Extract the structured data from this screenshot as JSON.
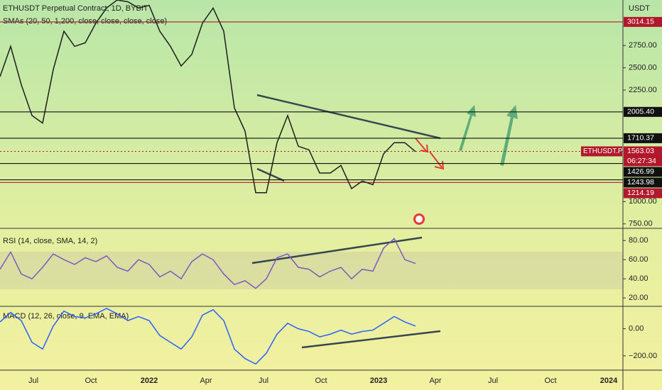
{
  "header": {
    "symbol": "ETHUSDT Perpetual Contract, 1D, BYBIT",
    "indicator": "SMAs (20, 50, 1,200, close, close, close, close)"
  },
  "price_axis": {
    "unit": "USDT",
    "ylim": [
      3260,
      700
    ],
    "yticks": [
      {
        "value": 2750,
        "label": "2750.00"
      },
      {
        "value": 2500,
        "label": "2500.00"
      },
      {
        "value": 2250,
        "label": "2250.00"
      },
      {
        "value": 1000,
        "label": "1000.00"
      },
      {
        "value": 750,
        "label": "750.00"
      }
    ],
    "levels": [
      {
        "value": 3014.15,
        "label": "3014.15",
        "color": "#b2182b"
      },
      {
        "value": 2005.4,
        "label": "2005.40",
        "color": "#111111"
      },
      {
        "value": 1710.37,
        "label": "1710.37",
        "color": "#111111"
      },
      {
        "value": 1426.99,
        "label": "1426.99",
        "color": "#111111"
      },
      {
        "value": 1243.98,
        "label": "1243.98",
        "color": "#111111"
      },
      {
        "value": 1214.19,
        "label": "1214.19",
        "color": "#b2182b"
      }
    ],
    "last": {
      "name": "ETHUSDT.P",
      "value": 1563.03,
      "countdown": "06:27:34",
      "color": "#b2182b"
    }
  },
  "price_series": {
    "color": "#1e1e1e",
    "values": [
      2400,
      2740,
      2310,
      1965,
      1880,
      2480,
      2910,
      2740,
      2780,
      3000,
      3170,
      3260,
      3240,
      3170,
      3200,
      2910,
      2740,
      2520,
      2650,
      3000,
      3170,
      2910,
      2050,
      1790,
      1100,
      1100,
      1660,
      1965,
      1620,
      1580,
      1320,
      1320,
      1405,
      1145,
      1230,
      1190,
      1535,
      1660,
      1660,
      1560
    ]
  },
  "rsi": {
    "title": "RSI (14, close, SMA, 14, 2)",
    "color": "#7e57c2",
    "ylim": [
      92,
      12
    ],
    "yticks": [
      {
        "value": 80,
        "label": "80.00"
      },
      {
        "value": 60,
        "label": "60.00"
      },
      {
        "value": 40,
        "label": "40.00"
      },
      {
        "value": 20,
        "label": "20.00"
      }
    ],
    "values": [
      50,
      68,
      45,
      40,
      52,
      66,
      60,
      55,
      62,
      58,
      64,
      52,
      48,
      60,
      55,
      42,
      48,
      40,
      58,
      66,
      60,
      45,
      34,
      38,
      30,
      40,
      62,
      66,
      52,
      50,
      42,
      48,
      52,
      40,
      50,
      48,
      72,
      82,
      60,
      56
    ]
  },
  "macd": {
    "title": "MACD (12, 26, close, 9, EMA, EMA)",
    "color": "#2962ff",
    "ylim": [
      160,
      -300
    ],
    "yticks": [
      {
        "value": 0,
        "label": "0.00"
      },
      {
        "value": -200,
        "label": "−200.00"
      }
    ],
    "values": [
      50,
      120,
      60,
      -100,
      -150,
      20,
      130,
      90,
      80,
      110,
      150,
      110,
      60,
      90,
      60,
      -50,
      -100,
      -150,
      -60,
      100,
      140,
      60,
      -150,
      -220,
      -260,
      -180,
      -40,
      40,
      0,
      -20,
      -60,
      -40,
      -10,
      -40,
      -20,
      -10,
      40,
      90,
      50,
      20
    ]
  },
  "time_axis": {
    "labels": [
      "Jul",
      "Oct",
      "2022",
      "Apr",
      "Jul",
      "Oct",
      "2023",
      "Apr",
      "Jul",
      "Oct",
      "2024"
    ]
  }
}
